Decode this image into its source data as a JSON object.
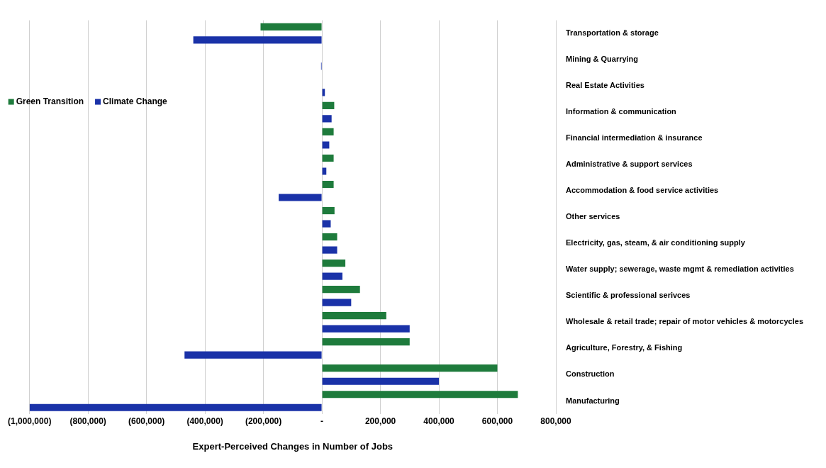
{
  "chart_data": {
    "type": "bar",
    "orientation": "horizontal",
    "xlabel": "Expert-Perceived Changes in Number of Jobs",
    "categories": [
      "Transportation & storage",
      "Mining & Quarrying",
      "Real Estate Activities",
      "Information & communication",
      "Financial intermediation & insurance",
      "Administrative & support services",
      "Accommodation & food service activities",
      "Other services",
      "Electricity, gas, steam, & air conditioning supply",
      "Water supply; sewerage, waste mgmt & remediation activities",
      "Scientific & professional serivces",
      "Wholesale & retail trade; repair of motor vehicles & motorcycles",
      "Agriculture, Forestry, & Fishing",
      "Construction",
      "Manufacturing"
    ],
    "series": [
      {
        "name": "Green Transition",
        "color": "#1e7b3c",
        "values": [
          -210000,
          0,
          null,
          42000,
          40000,
          40000,
          40000,
          43000,
          52000,
          80000,
          130000,
          220000,
          300000,
          600000,
          670000
        ]
      },
      {
        "name": "Climate Change",
        "color": "#1a32a8",
        "values": [
          -440000,
          -3000,
          10000,
          33000,
          25000,
          15000,
          -148000,
          30000,
          52000,
          70000,
          100000,
          300000,
          -470000,
          400000,
          -1000000
        ]
      }
    ],
    "xlim": [
      -1000000,
      800000
    ],
    "xticks": [
      {
        "value": -1000000,
        "label": "(1,000,000)"
      },
      {
        "value": -800000,
        "label": "(800,000)"
      },
      {
        "value": -600000,
        "label": "(600,000)"
      },
      {
        "value": -400000,
        "label": "(400,000)"
      },
      {
        "value": -200000,
        "label": "(200,000)"
      },
      {
        "value": 0,
        "label": "-"
      },
      {
        "value": 200000,
        "label": "200,000"
      },
      {
        "value": 400000,
        "label": "400,000"
      },
      {
        "value": 600000,
        "label": "600,000"
      },
      {
        "value": 800000,
        "label": "800,000"
      }
    ],
    "grid": "x",
    "legend": "top left"
  }
}
